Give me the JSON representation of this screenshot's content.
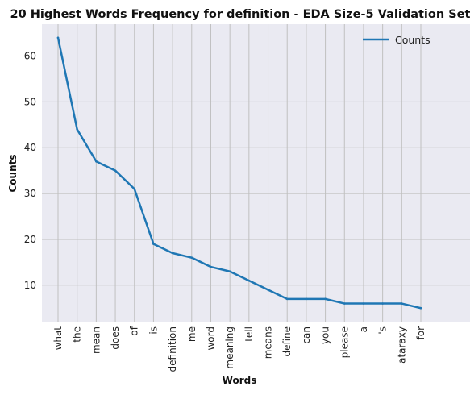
{
  "chart_data": {
    "type": "line",
    "title": "20 Highest Words Frequency for definition - EDA Size-5 Validation Set",
    "xlabel": "Words",
    "ylabel": "Counts",
    "categories": [
      "what",
      "the",
      "mean",
      "does",
      "of",
      "is",
      "definition",
      "me",
      "word",
      "meaning",
      "tell",
      "means",
      "define",
      "can",
      "you",
      "please",
      "a",
      "'s",
      "ataraxy",
      "for"
    ],
    "series": [
      {
        "name": "Counts",
        "color": "#1f77b4",
        "values": [
          64,
          44,
          37,
          35,
          31,
          19,
          17,
          16,
          14,
          13,
          11,
          9,
          7,
          7,
          7,
          6,
          6,
          6,
          6,
          5
        ]
      }
    ],
    "ylim": [
      2.05,
      66.95
    ],
    "yticks": [
      10,
      20,
      30,
      40,
      50,
      60
    ],
    "grid": true,
    "legend_position": "top-right",
    "background": "#eaeaf2",
    "grid_color": "#c0c0c0"
  }
}
